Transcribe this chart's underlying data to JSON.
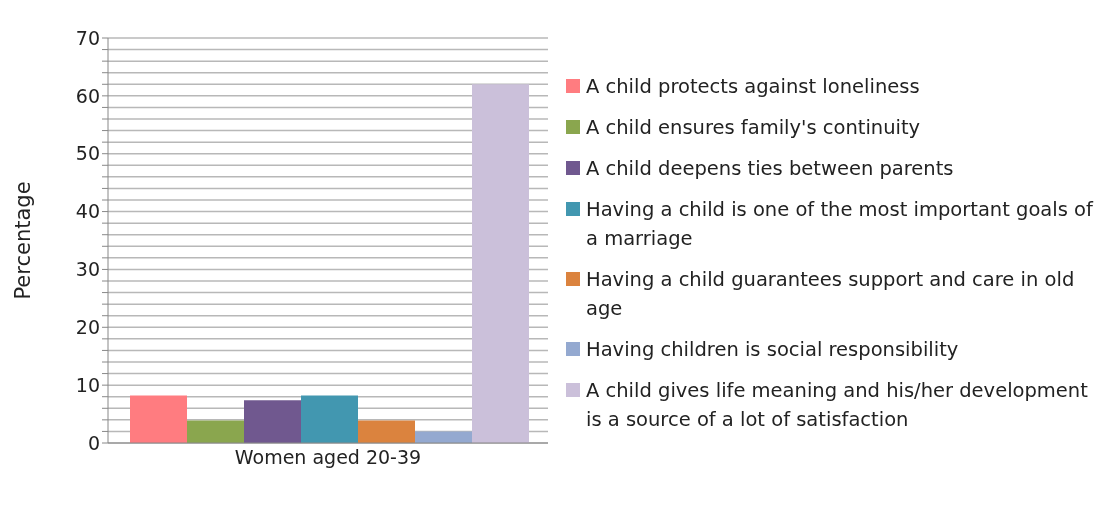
{
  "chart_data": {
    "type": "bar",
    "categories": [
      "Women aged 20-39"
    ],
    "ylabel": "Percentage",
    "ylim": [
      0,
      70
    ],
    "yticks": [
      0,
      {
        "value": 2,
        "label": null
      },
      {
        "value": 4,
        "label": null
      },
      {
        "value": 6,
        "label": null
      },
      {
        "value": 8,
        "label": null
      },
      10,
      {
        "value": 12,
        "label": null
      },
      {
        "value": 14,
        "label": null
      },
      {
        "value": 16,
        "label": null
      },
      {
        "value": 18,
        "label": null
      },
      20,
      {
        "value": 22,
        "label": null
      },
      {
        "value": 24,
        "label": null
      },
      {
        "value": 26,
        "label": null
      },
      {
        "value": 28,
        "label": null
      },
      30,
      {
        "value": 32,
        "label": null
      },
      {
        "value": 34,
        "label": null
      },
      {
        "value": 36,
        "label": null
      },
      {
        "value": 38,
        "label": null
      },
      40,
      {
        "value": 42,
        "label": null
      },
      {
        "value": 44,
        "label": null
      },
      {
        "value": 46,
        "label": null
      },
      {
        "value": 48,
        "label": null
      },
      50,
      {
        "value": 52,
        "label": null
      },
      {
        "value": 54,
        "label": null
      },
      {
        "value": 56,
        "label": null
      },
      {
        "value": 58,
        "label": null
      },
      60,
      {
        "value": 62,
        "label": null
      },
      {
        "value": 64,
        "label": null
      },
      {
        "value": 66,
        "label": null
      },
      {
        "value": 68,
        "label": null
      },
      70
    ],
    "grid": "y",
    "legend": "right",
    "series": [
      {
        "name": "A child protects against loneliness",
        "color": "#ff7c80",
        "values": [
          8.2
        ]
      },
      {
        "name": "A child ensures family's continuity",
        "color": "#8aa64e",
        "values": [
          3.9
        ]
      },
      {
        "name": "A child deepens ties between parents",
        "color": "#70588f",
        "values": [
          7.4
        ]
      },
      {
        "name": "Having a child is one of the most important goals of a marriage",
        "color": "#4297b0",
        "values": [
          8.2
        ]
      },
      {
        "name": "Having a child guarantees support and care in old age",
        "color": "#db833e",
        "values": [
          3.9
        ]
      },
      {
        "name": "Having children is social responsibility",
        "color": "#94a9d0",
        "values": [
          2
        ]
      },
      {
        "name": "A child gives life meaning and his/her development is a source of a lot of satisfaction",
        "color": "#cbc0da",
        "values": [
          62
        ]
      }
    ]
  }
}
